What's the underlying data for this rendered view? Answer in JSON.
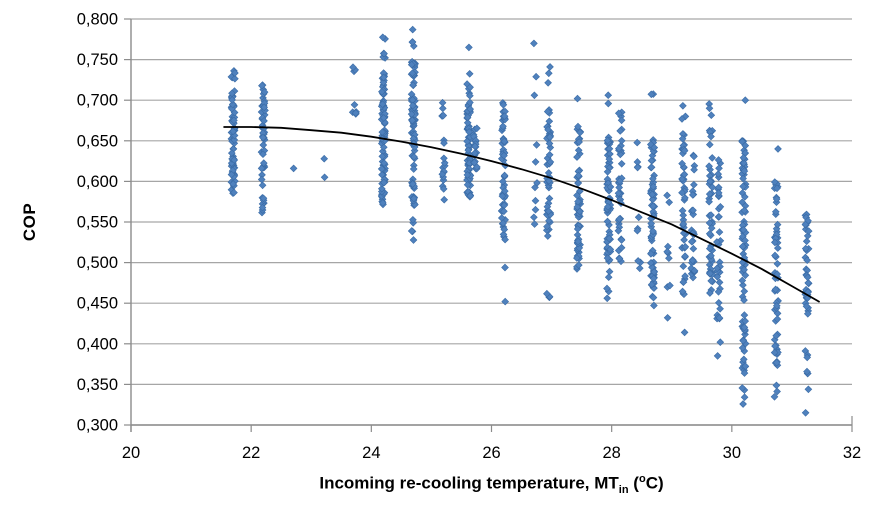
{
  "chart_data": {
    "type": "scatter",
    "title": "",
    "ylabel": "COP",
    "xlabel": "Incoming re-cooling temperature, MT_in (°C)",
    "xlabel_parts": {
      "main": "Incoming re-cooling temperature, MT",
      "sub": "in",
      "open": " (",
      "degree": "o",
      "close": "C)"
    },
    "xlim": [
      20,
      32
    ],
    "ylim": [
      0.3,
      0.8
    ],
    "grid": "horizontal",
    "legend": "none",
    "marker": "diamond",
    "colors": {
      "point_fill": "#4F81BD",
      "point_edge": "#3A6BA5",
      "grid": "#A6A6A6",
      "axis": "#8C8C8C",
      "trend": "#000000",
      "text": "#000000"
    },
    "x_ticks": [
      {
        "v": 20,
        "label": "20"
      },
      {
        "v": 22,
        "label": "22"
      },
      {
        "v": 24,
        "label": "24"
      },
      {
        "v": 26,
        "label": "26"
      },
      {
        "v": 28,
        "label": "28"
      },
      {
        "v": 30,
        "label": "30"
      },
      {
        "v": 32,
        "label": "32"
      }
    ],
    "y_ticks": [
      {
        "v": 0.8,
        "label": "0,800"
      },
      {
        "v": 0.75,
        "label": "0,750"
      },
      {
        "v": 0.7,
        "label": "0,700"
      },
      {
        "v": 0.65,
        "label": "0,650"
      },
      {
        "v": 0.6,
        "label": "0,600"
      },
      {
        "v": 0.55,
        "label": "0,550"
      },
      {
        "v": 0.5,
        "label": "0,500"
      },
      {
        "v": 0.45,
        "label": "0,450"
      },
      {
        "v": 0.4,
        "label": "0,400"
      },
      {
        "v": 0.35,
        "label": "0,350"
      },
      {
        "v": 0.3,
        "label": "0,300"
      }
    ],
    "scatter_columns": [
      {
        "x": 21.7,
        "segments": [
          [
            0.585,
            0.712,
            65
          ],
          [
            0.722,
            0.742,
            5
          ]
        ]
      },
      {
        "x": 22.2,
        "segments": [
          [
            0.554,
            0.6,
            10
          ],
          [
            0.6,
            0.715,
            40
          ],
          [
            0.716,
            0.722,
            2
          ]
        ]
      },
      {
        "x": 22.72,
        "segments": [
          [
            0.616,
            0.616,
            1
          ]
        ]
      },
      {
        "x": 23.22,
        "segments": [
          [
            0.605,
            0.605,
            1
          ],
          [
            0.628,
            0.628,
            1
          ]
        ]
      },
      {
        "x": 23.72,
        "segments": [
          [
            0.681,
            0.712,
            5
          ],
          [
            0.735,
            0.745,
            3
          ]
        ]
      },
      {
        "x": 24.2,
        "segments": [
          [
            0.568,
            0.735,
            85
          ],
          [
            0.75,
            0.765,
            4
          ],
          [
            0.775,
            0.778,
            2
          ]
        ]
      },
      {
        "x": 24.7,
        "segments": [
          [
            0.52,
            0.558,
            5
          ],
          [
            0.57,
            0.748,
            85
          ],
          [
            0.757,
            0.772,
            3
          ],
          [
            0.787,
            0.787,
            1
          ]
        ]
      },
      {
        "x": 25.2,
        "segments": [
          [
            0.577,
            0.655,
            14
          ],
          [
            0.68,
            0.706,
            4
          ]
        ]
      },
      {
        "x": 25.62,
        "segments": [
          [
            0.581,
            0.7,
            65
          ],
          [
            0.705,
            0.745,
            6
          ],
          [
            0.765,
            0.765,
            1
          ]
        ]
      },
      {
        "x": 25.73,
        "segments": [
          [
            0.612,
            0.668,
            18
          ]
        ]
      },
      {
        "x": 26.2,
        "segments": [
          [
            0.517,
            0.7,
            55
          ],
          [
            0.494,
            0.494,
            1
          ],
          [
            0.452,
            0.452,
            1
          ]
        ]
      },
      {
        "x": 26.73,
        "segments": [
          [
            0.77,
            0.77,
            1
          ],
          [
            0.729,
            0.729,
            1
          ],
          [
            0.706,
            0.706,
            1
          ],
          [
            0.645,
            0.645,
            1
          ],
          [
            0.624,
            0.624,
            1
          ],
          [
            0.545,
            0.6,
            6
          ]
        ]
      },
      {
        "x": 26.95,
        "segments": [
          [
            0.509,
            0.69,
            45
          ],
          [
            0.72,
            0.755,
            3
          ],
          [
            0.448,
            0.494,
            4
          ]
        ]
      },
      {
        "x": 27.45,
        "segments": [
          [
            0.48,
            0.672,
            60
          ],
          [
            0.702,
            0.702,
            1
          ]
        ]
      },
      {
        "x": 27.95,
        "segments": [
          [
            0.5,
            0.66,
            62
          ],
          [
            0.688,
            0.708,
            2
          ],
          [
            0.45,
            0.49,
            5
          ]
        ]
      },
      {
        "x": 28.14,
        "segments": [
          [
            0.496,
            0.686,
            40
          ]
        ]
      },
      {
        "x": 28.45,
        "segments": [
          [
            0.61,
            0.648,
            4
          ],
          [
            0.48,
            0.565,
            7
          ]
        ]
      },
      {
        "x": 28.68,
        "segments": [
          [
            0.468,
            0.652,
            68
          ],
          [
            0.698,
            0.712,
            2
          ],
          [
            0.443,
            0.46,
            3
          ]
        ]
      },
      {
        "x": 28.95,
        "segments": [
          [
            0.57,
            0.592,
            2
          ],
          [
            0.499,
            0.522,
            4
          ],
          [
            0.468,
            0.488,
            2
          ],
          [
            0.432,
            0.432,
            1
          ]
        ]
      },
      {
        "x": 29.2,
        "segments": [
          [
            0.452,
            0.66,
            48
          ],
          [
            0.676,
            0.696,
            3
          ],
          [
            0.414,
            0.414,
            1
          ]
        ]
      },
      {
        "x": 29.35,
        "segments": [
          [
            0.47,
            0.64,
            30
          ]
        ]
      },
      {
        "x": 29.65,
        "segments": [
          [
            0.46,
            0.665,
            48
          ],
          [
            0.68,
            0.696,
            3
          ]
        ]
      },
      {
        "x": 29.78,
        "segments": [
          [
            0.43,
            0.63,
            35
          ],
          [
            0.385,
            0.41,
            2
          ]
        ]
      },
      {
        "x": 30.2,
        "segments": [
          [
            0.36,
            0.655,
            85
          ],
          [
            0.7,
            0.7,
            1
          ],
          [
            0.323,
            0.352,
            4
          ]
        ]
      },
      {
        "x": 30.74,
        "segments": [
          [
            0.37,
            0.6,
            55
          ],
          [
            0.64,
            0.64,
            1
          ],
          [
            0.328,
            0.352,
            3
          ]
        ]
      },
      {
        "x": 31.25,
        "segments": [
          [
            0.43,
            0.575,
            38
          ],
          [
            0.36,
            0.425,
            6
          ],
          [
            0.344,
            0.344,
            1
          ],
          [
            0.315,
            0.315,
            1
          ]
        ]
      }
    ],
    "trend_points": [
      [
        21.55,
        0.667
      ],
      [
        22.0,
        0.667
      ],
      [
        22.5,
        0.666
      ],
      [
        23.0,
        0.663
      ],
      [
        23.5,
        0.66
      ],
      [
        24.0,
        0.655
      ],
      [
        24.5,
        0.649
      ],
      [
        25.0,
        0.642
      ],
      [
        25.5,
        0.634
      ],
      [
        26.0,
        0.625
      ],
      [
        26.5,
        0.615
      ],
      [
        27.0,
        0.604
      ],
      [
        27.5,
        0.591
      ],
      [
        28.0,
        0.577
      ],
      [
        28.5,
        0.562
      ],
      [
        29.0,
        0.547
      ],
      [
        29.5,
        0.529
      ],
      [
        30.0,
        0.511
      ],
      [
        30.5,
        0.492
      ],
      [
        31.0,
        0.471
      ],
      [
        31.45,
        0.452
      ]
    ]
  }
}
